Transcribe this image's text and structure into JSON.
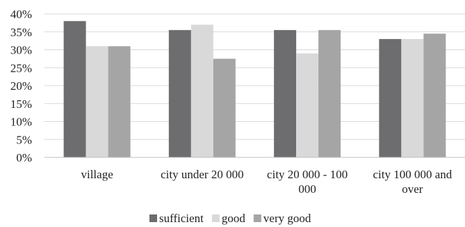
{
  "chart_data": {
    "type": "bar",
    "categories": [
      [
        "village"
      ],
      [
        "city under 20 000"
      ],
      [
        "city 20 000 - 100",
        "000"
      ],
      [
        "city 100 000 and",
        "over"
      ]
    ],
    "series": [
      {
        "name": "sufficient",
        "color": "#6d6d6f",
        "values": [
          38,
          35.5,
          35.5,
          33
        ]
      },
      {
        "name": "good",
        "color": "#d9d9d9",
        "values": [
          31,
          37,
          29,
          33
        ]
      },
      {
        "name": "very good",
        "color": "#a5a5a5",
        "values": [
          31,
          27.5,
          35.5,
          34.5
        ]
      }
    ],
    "yticks": [
      "0%",
      "5%",
      "10%",
      "15%",
      "20%",
      "25%",
      "30%",
      "35%",
      "40%"
    ],
    "ylim": [
      0,
      40
    ],
    "grid": true,
    "legend_position": "bottom",
    "title": "",
    "xlabel": "",
    "ylabel": ""
  }
}
